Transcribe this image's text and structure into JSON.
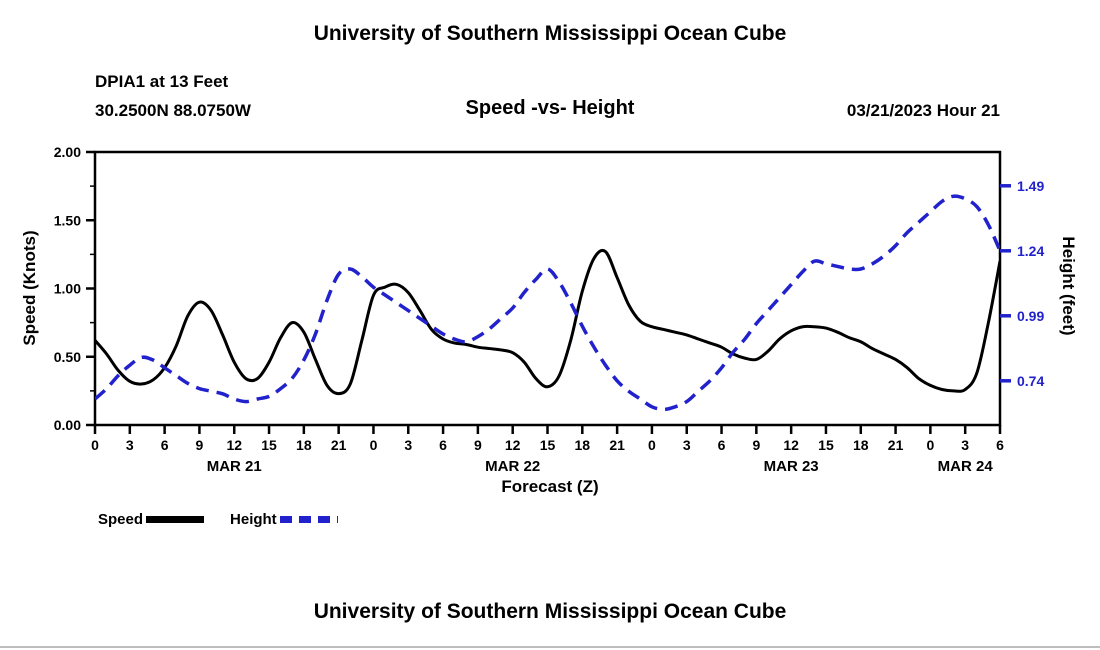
{
  "page": {
    "top_title": "University of Southern Mississippi Ocean Cube",
    "bottom_title": "University of Southern Mississippi Ocean Cube"
  },
  "header": {
    "station": "DPIA1 at 13 Feet",
    "coordinates": "30.2500N  88.0750W",
    "chart_title": "Speed -vs- Height",
    "datetime": "03/21/2023 Hour 21"
  },
  "legend": {
    "speed_label": "Speed",
    "height_label": "Height"
  },
  "chart_data": {
    "type": "line",
    "title": "Speed -vs- Height",
    "xlabel": "Forecast (Z)",
    "ylabel_left": "Speed (Knots)",
    "ylabel_right": "Height (feet)",
    "grid": false,
    "legend_position": "bottom-left",
    "x_hours_range": [
      0,
      78
    ],
    "left_axis": {
      "min": 0.0,
      "max": 2.0,
      "tick_values": [
        0.0,
        0.5,
        1.0,
        1.5,
        2.0
      ],
      "tick_labels": [
        "0.00",
        "0.50",
        "1.00",
        "1.50",
        "2.00"
      ],
      "color": "#000000"
    },
    "right_axis": {
      "min": 0.57,
      "max": 1.62,
      "tick_values": [
        0.74,
        0.99,
        1.24,
        1.49
      ],
      "tick_labels": [
        "0.74",
        "0.99",
        "1.24",
        "1.49"
      ],
      "color": "#2222cc"
    },
    "x_axis": {
      "tick_step_hours": 3,
      "tick_labels": [
        "0",
        "3",
        "6",
        "9",
        "12",
        "15",
        "18",
        "21",
        "0",
        "3",
        "6",
        "9",
        "12",
        "15",
        "18",
        "21",
        "0",
        "3",
        "6",
        "9",
        "12",
        "15",
        "18",
        "21",
        "0",
        "3",
        "6"
      ],
      "day_labels": [
        {
          "hour": 12,
          "label": "MAR 21"
        },
        {
          "hour": 36,
          "label": "MAR 22"
        },
        {
          "hour": 60,
          "label": "MAR 23"
        },
        {
          "hour": 75,
          "label": "MAR 24"
        }
      ]
    },
    "series": [
      {
        "name": "Speed",
        "axis": "left",
        "color": "#000000",
        "style": "solid",
        "points": [
          [
            0,
            0.62
          ],
          [
            1,
            0.52
          ],
          [
            2,
            0.4
          ],
          [
            3,
            0.32
          ],
          [
            4,
            0.3
          ],
          [
            5,
            0.33
          ],
          [
            6,
            0.42
          ],
          [
            7,
            0.58
          ],
          [
            8,
            0.8
          ],
          [
            9,
            0.9
          ],
          [
            10,
            0.84
          ],
          [
            11,
            0.66
          ],
          [
            12,
            0.46
          ],
          [
            13,
            0.34
          ],
          [
            14,
            0.34
          ],
          [
            15,
            0.46
          ],
          [
            16,
            0.64
          ],
          [
            17,
            0.75
          ],
          [
            18,
            0.68
          ],
          [
            19,
            0.48
          ],
          [
            20,
            0.29
          ],
          [
            21,
            0.23
          ],
          [
            22,
            0.3
          ],
          [
            23,
            0.62
          ],
          [
            24,
            0.95
          ],
          [
            25,
            1.01
          ],
          [
            26,
            1.03
          ],
          [
            27,
            0.97
          ],
          [
            28,
            0.84
          ],
          [
            29,
            0.7
          ],
          [
            30,
            0.63
          ],
          [
            31,
            0.6
          ],
          [
            32,
            0.59
          ],
          [
            33,
            0.57
          ],
          [
            34,
            0.56
          ],
          [
            35,
            0.55
          ],
          [
            36,
            0.53
          ],
          [
            37,
            0.46
          ],
          [
            38,
            0.34
          ],
          [
            39,
            0.28
          ],
          [
            40,
            0.36
          ],
          [
            41,
            0.62
          ],
          [
            42,
            0.98
          ],
          [
            43,
            1.22
          ],
          [
            44,
            1.27
          ],
          [
            45,
            1.08
          ],
          [
            46,
            0.88
          ],
          [
            47,
            0.76
          ],
          [
            48,
            0.72
          ],
          [
            49,
            0.7
          ],
          [
            50,
            0.68
          ],
          [
            51,
            0.66
          ],
          [
            52,
            0.63
          ],
          [
            53,
            0.6
          ],
          [
            54,
            0.57
          ],
          [
            55,
            0.52
          ],
          [
            56,
            0.49
          ],
          [
            57,
            0.48
          ],
          [
            58,
            0.54
          ],
          [
            59,
            0.63
          ],
          [
            60,
            0.69
          ],
          [
            61,
            0.72
          ],
          [
            62,
            0.72
          ],
          [
            63,
            0.71
          ],
          [
            64,
            0.68
          ],
          [
            65,
            0.64
          ],
          [
            66,
            0.61
          ],
          [
            67,
            0.56
          ],
          [
            68,
            0.52
          ],
          [
            69,
            0.48
          ],
          [
            70,
            0.42
          ],
          [
            71,
            0.34
          ],
          [
            72,
            0.29
          ],
          [
            73,
            0.26
          ],
          [
            74,
            0.25
          ],
          [
            75,
            0.26
          ],
          [
            76,
            0.38
          ],
          [
            77,
            0.75
          ],
          [
            78,
            1.2
          ]
        ]
      },
      {
        "name": "Height",
        "axis": "right",
        "color": "#2222cc",
        "style": "dashed",
        "points": [
          [
            0,
            0.67
          ],
          [
            1,
            0.71
          ],
          [
            2,
            0.76
          ],
          [
            3,
            0.8
          ],
          [
            4,
            0.83
          ],
          [
            5,
            0.82
          ],
          [
            6,
            0.79
          ],
          [
            7,
            0.76
          ],
          [
            8,
            0.73
          ],
          [
            9,
            0.71
          ],
          [
            10,
            0.7
          ],
          [
            11,
            0.69
          ],
          [
            12,
            0.67
          ],
          [
            13,
            0.66
          ],
          [
            14,
            0.67
          ],
          [
            15,
            0.68
          ],
          [
            16,
            0.71
          ],
          [
            17,
            0.75
          ],
          [
            18,
            0.82
          ],
          [
            19,
            0.92
          ],
          [
            20,
            1.05
          ],
          [
            21,
            1.15
          ],
          [
            22,
            1.17
          ],
          [
            23,
            1.14
          ],
          [
            24,
            1.1
          ],
          [
            25,
            1.07
          ],
          [
            26,
            1.04
          ],
          [
            27,
            1.01
          ],
          [
            28,
            0.98
          ],
          [
            29,
            0.95
          ],
          [
            30,
            0.92
          ],
          [
            31,
            0.9
          ],
          [
            32,
            0.89
          ],
          [
            33,
            0.91
          ],
          [
            34,
            0.94
          ],
          [
            35,
            0.98
          ],
          [
            36,
            1.02
          ],
          [
            37,
            1.08
          ],
          [
            38,
            1.13
          ],
          [
            39,
            1.17
          ],
          [
            40,
            1.12
          ],
          [
            41,
            1.04
          ],
          [
            42,
            0.95
          ],
          [
            43,
            0.87
          ],
          [
            44,
            0.8
          ],
          [
            45,
            0.74
          ],
          [
            46,
            0.7
          ],
          [
            47,
            0.67
          ],
          [
            48,
            0.64
          ],
          [
            49,
            0.63
          ],
          [
            50,
            0.64
          ],
          [
            51,
            0.66
          ],
          [
            52,
            0.7
          ],
          [
            53,
            0.74
          ],
          [
            54,
            0.79
          ],
          [
            55,
            0.85
          ],
          [
            56,
            0.9
          ],
          [
            57,
            0.96
          ],
          [
            58,
            1.01
          ],
          [
            59,
            1.06
          ],
          [
            60,
            1.11
          ],
          [
            61,
            1.16
          ],
          [
            62,
            1.2
          ],
          [
            63,
            1.19
          ],
          [
            64,
            1.18
          ],
          [
            65,
            1.17
          ],
          [
            66,
            1.17
          ],
          [
            67,
            1.19
          ],
          [
            68,
            1.22
          ],
          [
            69,
            1.26
          ],
          [
            70,
            1.31
          ],
          [
            71,
            1.35
          ],
          [
            72,
            1.39
          ],
          [
            73,
            1.43
          ],
          [
            74,
            1.45
          ],
          [
            75,
            1.44
          ],
          [
            76,
            1.41
          ],
          [
            77,
            1.34
          ],
          [
            78,
            1.24
          ]
        ]
      }
    ]
  }
}
